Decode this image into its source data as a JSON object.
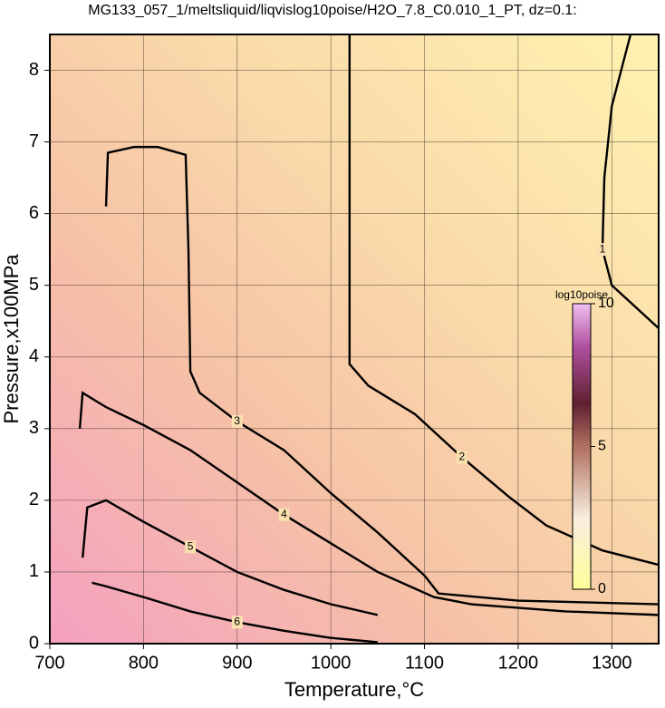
{
  "chart_data": {
    "type": "contour",
    "title": "MG133_057_1/meltsliquid/liqvislog10poise/H2O_7.8_C0.010_1_PT, dz=0.1:",
    "xlabel": "Temperature,°C",
    "ylabel": "Pressure,x100MPa",
    "xlim": [
      700,
      1350
    ],
    "ylim": [
      0,
      8.5
    ],
    "xticks": [
      700,
      800,
      900,
      1000,
      1100,
      1200,
      1300
    ],
    "yticks": [
      0,
      1,
      2,
      3,
      4,
      5,
      6,
      7,
      8
    ],
    "grid": true,
    "contours": [
      {
        "level": 1,
        "x": [
          1320,
          1300,
          1292,
          1290,
          1300,
          1325,
          1350
        ],
        "y": [
          8.5,
          7.5,
          6.5,
          5.5,
          5.0,
          4.7,
          4.4
        ]
      },
      {
        "level": 2,
        "x": [
          1020,
          1020,
          1020,
          1040,
          1090,
          1140,
          1190,
          1230,
          1290,
          1350
        ],
        "y": [
          8.5,
          6.0,
          3.9,
          3.6,
          3.2,
          2.6,
          2.05,
          1.65,
          1.3,
          1.1
        ]
      },
      {
        "level": 3,
        "x": [
          760,
          762,
          790,
          815,
          845,
          848,
          850,
          860,
          900,
          950,
          1000,
          1050,
          1100,
          1115,
          1200,
          1350
        ],
        "y": [
          6.1,
          6.85,
          6.93,
          6.93,
          6.82,
          5.5,
          3.8,
          3.5,
          3.1,
          2.7,
          2.1,
          1.55,
          0.95,
          0.7,
          0.6,
          0.55
        ]
      },
      {
        "level": 4,
        "x": [
          732,
          735,
          760,
          800,
          850,
          900,
          950,
          1000,
          1050,
          1110,
          1150,
          1250,
          1350
        ],
        "y": [
          3.0,
          3.5,
          3.3,
          3.05,
          2.7,
          2.25,
          1.8,
          1.4,
          1.0,
          0.65,
          0.55,
          0.45,
          0.4
        ]
      },
      {
        "level": 5,
        "x": [
          735,
          740,
          760,
          800,
          850,
          900,
          950,
          1000,
          1050
        ],
        "y": [
          1.2,
          1.9,
          2.0,
          1.7,
          1.35,
          1.0,
          0.75,
          0.55,
          0.4
        ]
      },
      {
        "level": 6,
        "x": [
          745,
          760,
          800,
          850,
          900,
          950,
          1000,
          1050
        ],
        "y": [
          0.85,
          0.8,
          0.65,
          0.45,
          0.3,
          0.18,
          0.08,
          0.02
        ]
      }
    ],
    "colorbar": {
      "title": "log10poise",
      "clim": [
        0,
        10
      ],
      "ticks": [
        0,
        5,
        10
      ]
    }
  }
}
